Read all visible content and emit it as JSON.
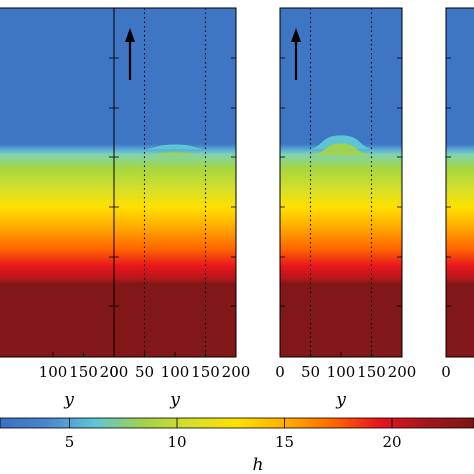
{
  "figure": {
    "colormap": [
      "#3b6fc2",
      "#4a86cf",
      "#5fc6d6",
      "#9fd24a",
      "#d6df2a",
      "#ffe100",
      "#ffb000",
      "#ff6a00",
      "#e8141e",
      "#a3161b",
      "#7e1616"
    ],
    "background_color": "#3f76c4",
    "bottom_color": "#821717"
  },
  "chart_data": {
    "type": "heatmap",
    "panels": [
      {
        "name": "panel-1",
        "xlabel": "y",
        "xticks": [
          "100",
          "150",
          "200"
        ],
        "xlim": [
          0,
          200
        ],
        "arrow": false,
        "dotted_lines_y": [],
        "bump_height": 0
      },
      {
        "name": "panel-2",
        "xlabel": "y",
        "xticks": [
          "0",
          "50",
          "100",
          "150",
          "200"
        ],
        "xlim": [
          0,
          200
        ],
        "arrow": true,
        "dotted_lines_y": [
          50,
          150
        ],
        "bump_height": 0.35
      },
      {
        "name": "panel-3",
        "xlabel": "y",
        "xticks": [
          "0",
          "50",
          "100",
          "150",
          "200"
        ],
        "xlim": [
          0,
          200
        ],
        "arrow": true,
        "dotted_lines_y": [
          50,
          150
        ],
        "bump_height": 1.0
      },
      {
        "name": "panel-4",
        "xlabel": "",
        "xticks": [
          "0"
        ],
        "xlim": [
          0,
          200
        ],
        "arrow": false,
        "dotted_lines_y": [],
        "bump_height": 0
      }
    ],
    "colorbar": {
      "label": "h",
      "ticks": [
        {
          "value": 5,
          "label": "5"
        },
        {
          "value": 10,
          "label": "10"
        },
        {
          "value": 15,
          "label": "15"
        },
        {
          "value": 20,
          "label": "20"
        }
      ],
      "range": [
        0,
        21.3
      ]
    }
  }
}
